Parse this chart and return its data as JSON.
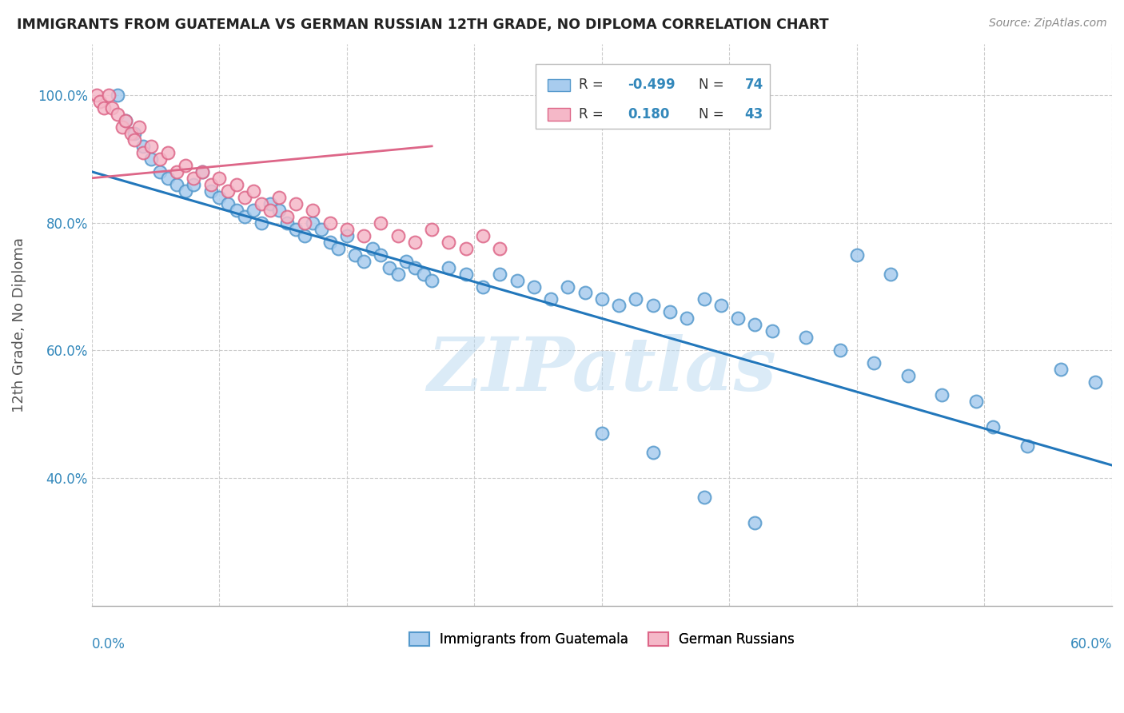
{
  "title": "IMMIGRANTS FROM GUATEMALA VS GERMAN RUSSIAN 12TH GRADE, NO DIPLOMA CORRELATION CHART",
  "source": "Source: ZipAtlas.com",
  "ylabel": "12th Grade, No Diploma",
  "R_blue": -0.499,
  "N_blue": 74,
  "R_pink": 0.18,
  "N_pink": 43,
  "blue_color": "#a8ccee",
  "blue_edge_color": "#5599cc",
  "blue_line_color": "#2277bb",
  "pink_color": "#f5b8c8",
  "pink_edge_color": "#dd6688",
  "pink_line_color": "#dd6688",
  "watermark": "ZIPatlas",
  "xlim": [
    0,
    60
  ],
  "ylim": [
    20,
    108
  ],
  "y_tick_vals": [
    40,
    60,
    80,
    100
  ],
  "y_tick_labels": [
    "40.0%",
    "60.0%",
    "80.0%",
    "100.0%"
  ],
  "blue_line_x0": 0,
  "blue_line_y0": 88,
  "blue_line_x1": 60,
  "blue_line_y1": 42,
  "pink_line_x0": 0,
  "pink_line_y0": 87,
  "pink_line_x1": 20,
  "pink_line_y1": 92,
  "blue_x": [
    1.5,
    2.0,
    2.5,
    3.0,
    3.5,
    4.0,
    4.5,
    5.0,
    5.5,
    6.0,
    6.5,
    7.0,
    7.5,
    8.0,
    8.5,
    9.0,
    9.5,
    10.0,
    10.5,
    11.0,
    11.5,
    12.0,
    12.5,
    13.0,
    13.5,
    14.0,
    14.5,
    15.0,
    15.5,
    16.0,
    16.5,
    17.0,
    17.5,
    18.0,
    18.5,
    19.0,
    19.5,
    20.0,
    21.0,
    22.0,
    23.0,
    24.0,
    25.0,
    26.0,
    27.0,
    28.0,
    29.0,
    30.0,
    31.0,
    32.0,
    33.0,
    34.0,
    35.0,
    36.0,
    37.0,
    38.0,
    39.0,
    40.0,
    42.0,
    44.0,
    46.0,
    48.0,
    50.0,
    52.0,
    45.0,
    47.0,
    53.0,
    55.0,
    57.0,
    59.0,
    30.0,
    33.0,
    36.0,
    39.0
  ],
  "blue_y": [
    100,
    96,
    94,
    92,
    90,
    88,
    87,
    86,
    85,
    86,
    88,
    85,
    84,
    83,
    82,
    81,
    82,
    80,
    83,
    82,
    80,
    79,
    78,
    80,
    79,
    77,
    76,
    78,
    75,
    74,
    76,
    75,
    73,
    72,
    74,
    73,
    72,
    71,
    73,
    72,
    70,
    72,
    71,
    70,
    68,
    70,
    69,
    68,
    67,
    68,
    67,
    66,
    65,
    68,
    67,
    65,
    64,
    63,
    62,
    60,
    58,
    56,
    53,
    52,
    75,
    72,
    48,
    45,
    57,
    55,
    47,
    44,
    37,
    33
  ],
  "pink_x": [
    0.3,
    0.5,
    0.7,
    1.0,
    1.2,
    1.5,
    1.8,
    2.0,
    2.3,
    2.5,
    2.8,
    3.0,
    3.5,
    4.0,
    4.5,
    5.0,
    5.5,
    6.0,
    6.5,
    7.0,
    7.5,
    8.0,
    8.5,
    9.0,
    9.5,
    10.0,
    10.5,
    11.0,
    11.5,
    12.0,
    12.5,
    13.0,
    14.0,
    15.0,
    16.0,
    17.0,
    18.0,
    19.0,
    20.0,
    21.0,
    22.0,
    23.0,
    24.0
  ],
  "pink_y": [
    100,
    99,
    98,
    100,
    98,
    97,
    95,
    96,
    94,
    93,
    95,
    91,
    92,
    90,
    91,
    88,
    89,
    87,
    88,
    86,
    87,
    85,
    86,
    84,
    85,
    83,
    82,
    84,
    81,
    83,
    80,
    82,
    80,
    79,
    78,
    80,
    78,
    77,
    79,
    77,
    76,
    78,
    76
  ]
}
